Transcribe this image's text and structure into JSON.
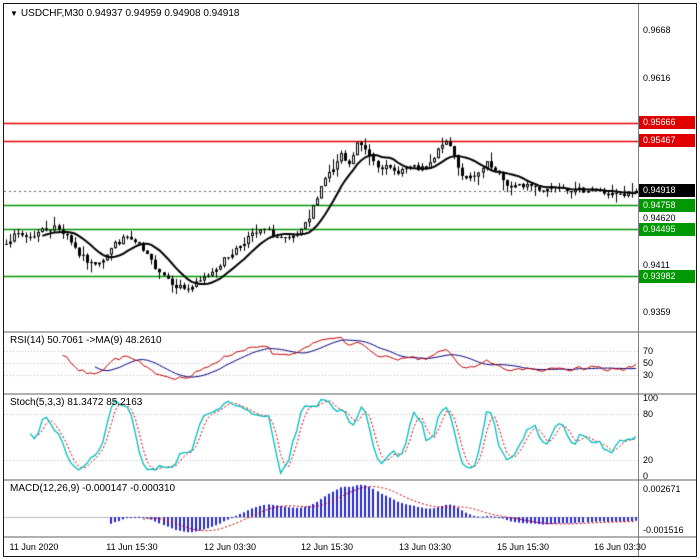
{
  "header": {
    "symbol": "USDCHF,M30",
    "open": "0.94937",
    "high": "0.94959",
    "low": "0.94908",
    "close": "0.94918"
  },
  "colors": {
    "background": "#ffffff",
    "border": "#1a1a1a",
    "separator": "#b0b0b0",
    "axis_divider": "#808080",
    "grid_dotted": "#bbbbbb",
    "candle_up_fill": "#ffffff",
    "candle_down_fill": "#000000",
    "candle_outline": "#000000",
    "ma_line": "#000000",
    "resistance": "#e00000",
    "support": "#009800",
    "current_price_line": "#666666",
    "rsi_line": "#c00000",
    "rsi_ma_line": "#000080",
    "stoch_main": "#00bdbd",
    "stoch_signal": "#cc0000",
    "macd_histogram": "#2727cd",
    "macd_signal": "#cc0000",
    "axis_text": "#000000",
    "badge_text": "#ffffff"
  },
  "price_axis": {
    "price_min": 0.9338,
    "price_max": 0.9697,
    "ticks": [
      {
        "label": "0.9668",
        "value": 0.9668
      },
      {
        "label": "0.9616",
        "value": 0.9616
      },
      {
        "label": "0.94620",
        "value": 0.9462
      },
      {
        "label": "0.9411",
        "value": 0.9411
      },
      {
        "label": "0.9359",
        "value": 0.9359
      }
    ],
    "badges": [
      {
        "label": "0.95666",
        "value": 0.95666,
        "kind": "resistance"
      },
      {
        "label": "0.95467",
        "value": 0.95467,
        "kind": "resistance"
      },
      {
        "label": "0.94918",
        "value": 0.94918,
        "kind": "current"
      },
      {
        "label": "0.94758",
        "value": 0.94758,
        "kind": "support"
      },
      {
        "label": "0.94495",
        "value": 0.94495,
        "kind": "support"
      },
      {
        "label": "0.93982",
        "value": 0.93982,
        "kind": "support"
      }
    ]
  },
  "rsi_panel": {
    "name": "RSI(14)",
    "value": "50.7061",
    "arrow": "->MA(9)",
    "ma_value": "48.2610",
    "range": [
      0,
      100
    ],
    "levels": [
      70,
      50,
      30
    ],
    "ticks": [
      {
        "label": "70",
        "value": 70
      },
      {
        "label": "50",
        "value": 50
      },
      {
        "label": "30",
        "value": 30
      }
    ]
  },
  "stoch_panel": {
    "name": "Stoch(5,3,3)",
    "value": "81.3472",
    "signal_value": "85.2163",
    "range": [
      0,
      100
    ],
    "levels": [
      80,
      20
    ],
    "ticks": [
      {
        "label": "100",
        "value": 100
      },
      {
        "label": "80",
        "value": 80
      },
      {
        "label": "20",
        "value": 20
      },
      {
        "label": "0",
        "value": 0
      }
    ]
  },
  "macd_panel": {
    "name": "MACD(12,26,9)",
    "value": "-0.000147",
    "signal_value": "-0.000310",
    "ticks": [
      {
        "label": "0.002671",
        "pos": "max"
      },
      {
        "label": "-0.001516",
        "pos": "min"
      }
    ]
  },
  "time_axis": {
    "labels": [
      "11 Jun 2020",
      "11 Jun 15:30",
      "12 Jun 03:30",
      "12 Jun 15:30",
      "13 Jun 03:30",
      "15 Jun 15:30",
      "16 Jun 03:30"
    ],
    "fractions": [
      0.048,
      0.202,
      0.356,
      0.51,
      0.664,
      0.818,
      0.972
    ]
  },
  "chart_data": {
    "type": "candlestick",
    "symbol": "USDCHF",
    "timeframe": "M30",
    "title": "USDCHF,M30",
    "ohlc_current": {
      "open": 0.94937,
      "high": 0.94959,
      "low": 0.94908,
      "close": 0.94918
    },
    "bars": 157,
    "price_range": [
      0.9338,
      0.9697
    ],
    "resistance_levels": [
      0.95666,
      0.95467
    ],
    "support_levels": [
      0.94758,
      0.94495,
      0.93982
    ],
    "current_price": 0.94918,
    "close_keypoints": [
      [
        0,
        0.9437
      ],
      [
        3,
        0.9444
      ],
      [
        6,
        0.9441
      ],
      [
        9,
        0.9449
      ],
      [
        12,
        0.9452
      ],
      [
        15,
        0.9444
      ],
      [
        18,
        0.9422
      ],
      [
        21,
        0.9411
      ],
      [
        24,
        0.9418
      ],
      [
        27,
        0.9434
      ],
      [
        30,
        0.9441
      ],
      [
        33,
        0.9431
      ],
      [
        36,
        0.9414
      ],
      [
        39,
        0.94
      ],
      [
        42,
        0.9388
      ],
      [
        45,
        0.9384
      ],
      [
        48,
        0.9392
      ],
      [
        52,
        0.9408
      ],
      [
        56,
        0.9424
      ],
      [
        60,
        0.9441
      ],
      [
        64,
        0.9449
      ],
      [
        67,
        0.9441
      ],
      [
        70,
        0.9437
      ],
      [
        73,
        0.9447
      ],
      [
        75,
        0.9461
      ],
      [
        77,
        0.9487
      ],
      [
        79,
        0.9507
      ],
      [
        81,
        0.9515
      ],
      [
        83,
        0.953
      ],
      [
        85,
        0.9519
      ],
      [
        87,
        0.9544
      ],
      [
        89,
        0.9537
      ],
      [
        92,
        0.9521
      ],
      [
        96,
        0.9513
      ],
      [
        100,
        0.9517
      ],
      [
        104,
        0.9515
      ],
      [
        106,
        0.9527
      ],
      [
        108,
        0.9545
      ],
      [
        110,
        0.9541
      ],
      [
        113,
        0.9509
      ],
      [
        116,
        0.9505
      ],
      [
        119,
        0.9521
      ],
      [
        122,
        0.9508
      ],
      [
        125,
        0.9495
      ],
      [
        129,
        0.9499
      ],
      [
        133,
        0.9493
      ],
      [
        137,
        0.9499
      ],
      [
        141,
        0.9491
      ],
      [
        145,
        0.9495
      ],
      [
        149,
        0.9488
      ],
      [
        153,
        0.9486
      ],
      [
        156,
        0.94918
      ]
    ],
    "noise_amplitude": 0.00035,
    "wick_amplitude": 0.0006,
    "seed": 7,
    "ma_period": 10,
    "x_labels": [
      "11 Jun 2020",
      "11 Jun 15:30",
      "12 Jun 03:30",
      "12 Jun 15:30",
      "13 Jun 03:30",
      "15 Jun 15:30",
      "16 Jun 03:30"
    ],
    "indicators": [
      {
        "type": "RSI",
        "period": 14,
        "ma_period": 9,
        "current": 50.7061,
        "ma_current": 48.261,
        "levels": [
          30,
          50,
          70
        ],
        "range": [
          0,
          100
        ]
      },
      {
        "type": "Stochastic",
        "k": 5,
        "d": 3,
        "slowing": 3,
        "current": 81.3472,
        "signal_current": 85.2163,
        "levels": [
          20,
          80
        ],
        "range": [
          0,
          100
        ]
      },
      {
        "type": "MACD",
        "fast": 12,
        "slow": 26,
        "signal": 9,
        "current": -0.000147,
        "signal_current": -0.00031,
        "axis_max": 0.002671,
        "axis_min": -0.001516
      }
    ]
  }
}
